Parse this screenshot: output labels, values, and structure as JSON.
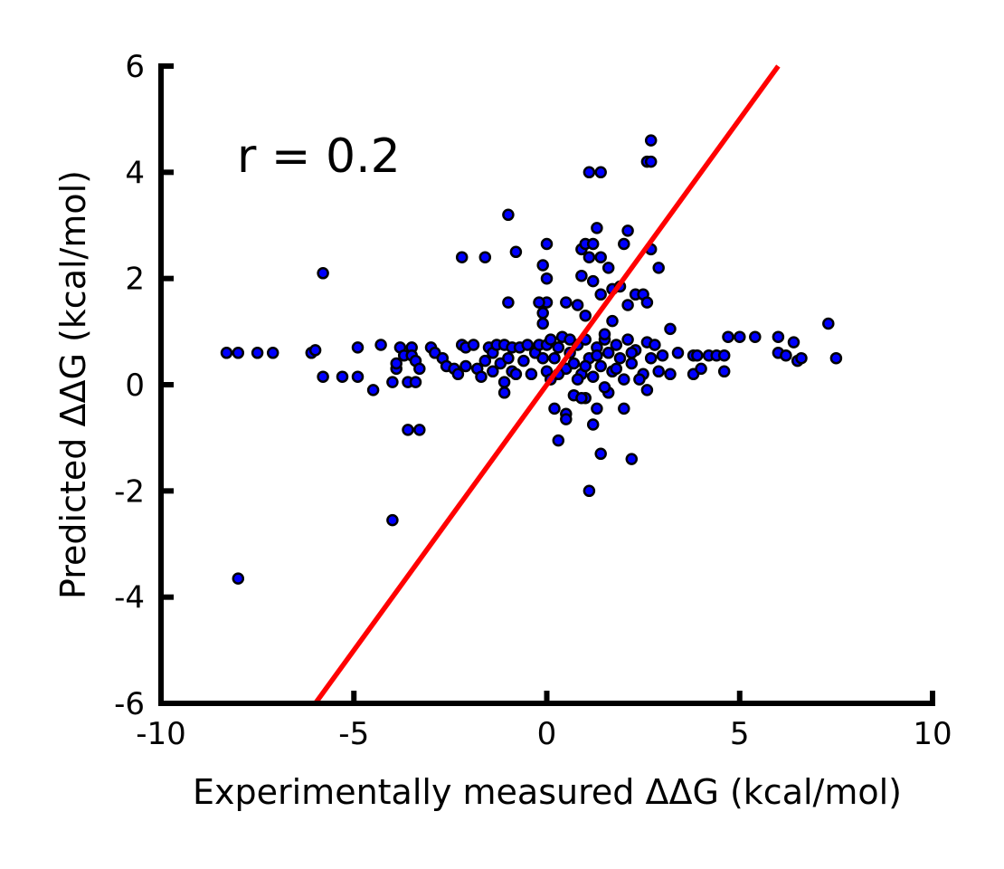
{
  "chart_data": {
    "type": "scatter",
    "xlabel": "Experimentally measured ΔΔG (kcal/mol)",
    "ylabel": "Predicted ΔΔG (kcal/mol)",
    "xlim": [
      -10,
      10
    ],
    "ylim": [
      -6,
      6
    ],
    "xticks": [
      -10,
      -5,
      0,
      5,
      10
    ],
    "yticks": [
      -6,
      -4,
      -2,
      0,
      2,
      4,
      6
    ],
    "xtick_labels": [
      "-10",
      "-5",
      "0",
      "5",
      "10"
    ],
    "ytick_labels": [
      "-6",
      "-4",
      "-2",
      "0",
      "2",
      "4",
      "6"
    ],
    "annotation": "r = 0.2",
    "grid": false,
    "point_color": "#0000ff",
    "point_edge_color": "#000000",
    "line_color": "#ff0000",
    "line": {
      "x": [
        -6,
        6
      ],
      "y": [
        -6,
        6
      ]
    },
    "points": [
      [
        -8.3,
        0.6
      ],
      [
        -8.0,
        0.6
      ],
      [
        -7.5,
        0.6
      ],
      [
        -7.1,
        0.6
      ],
      [
        -6.1,
        0.6
      ],
      [
        -6.0,
        0.65
      ],
      [
        -5.8,
        2.1
      ],
      [
        -5.8,
        0.15
      ],
      [
        -5.3,
        0.15
      ],
      [
        -4.9,
        0.15
      ],
      [
        -4.9,
        0.7
      ],
      [
        -4.5,
        -0.1
      ],
      [
        -4.3,
        0.75
      ],
      [
        -4.0,
        0.05
      ],
      [
        -3.9,
        0.3
      ],
      [
        -3.9,
        0.4
      ],
      [
        -3.8,
        0.7
      ],
      [
        -3.7,
        0.55
      ],
      [
        -3.6,
        0.05
      ],
      [
        -3.5,
        0.7
      ],
      [
        -3.4,
        0.05
      ],
      [
        -3.5,
        0.55
      ],
      [
        -3.4,
        0.45
      ],
      [
        -3.3,
        0.3
      ],
      [
        -3.6,
        -0.85
      ],
      [
        -3.3,
        -0.85
      ],
      [
        -3.0,
        0.7
      ],
      [
        -2.9,
        0.6
      ],
      [
        -2.7,
        0.5
      ],
      [
        -2.6,
        0.35
      ],
      [
        -2.4,
        0.3
      ],
      [
        -2.2,
        0.75
      ],
      [
        -2.1,
        0.7
      ],
      [
        -2.3,
        0.2
      ],
      [
        -2.1,
        0.35
      ],
      [
        -1.9,
        0.75
      ],
      [
        -1.8,
        0.3
      ],
      [
        -1.7,
        0.15
      ],
      [
        -1.6,
        0.45
      ],
      [
        -1.5,
        0.7
      ],
      [
        -1.4,
        0.25
      ],
      [
        -1.4,
        0.6
      ],
      [
        -1.3,
        0.75
      ],
      [
        -1.2,
        0.4
      ],
      [
        -1.1,
        0.75
      ],
      [
        -1.0,
        0.5
      ],
      [
        -0.9,
        0.25
      ],
      [
        -0.9,
        0.7
      ],
      [
        -0.8,
        0.2
      ],
      [
        -0.7,
        0.7
      ],
      [
        -0.6,
        0.45
      ],
      [
        -0.5,
        0.75
      ],
      [
        -0.4,
        0.2
      ],
      [
        -0.3,
        0.6
      ],
      [
        -0.2,
        0.75
      ],
      [
        -0.1,
        0.5
      ],
      [
        0.0,
        0.25
      ],
      [
        0.0,
        0.75
      ],
      [
        -1.1,
        -0.15
      ],
      [
        -1.1,
        0.05
      ],
      [
        -2.2,
        2.4
      ],
      [
        -1.6,
        2.4
      ],
      [
        -1.0,
        3.2
      ],
      [
        -0.8,
        2.5
      ],
      [
        -1.0,
        1.55
      ],
      [
        -4.0,
        -2.55
      ],
      [
        -8.0,
        -3.65
      ],
      [
        0.1,
        0.85
      ],
      [
        0.2,
        0.5
      ],
      [
        0.3,
        0.7
      ],
      [
        0.4,
        0.9
      ],
      [
        0.5,
        0.3
      ],
      [
        0.6,
        0.6
      ],
      [
        0.7,
        0.4
      ],
      [
        0.8,
        0.75
      ],
      [
        0.9,
        0.2
      ],
      [
        1.0,
        0.85
      ],
      [
        1.1,
        0.5
      ],
      [
        1.2,
        0.15
      ],
      [
        1.3,
        0.7
      ],
      [
        1.4,
        0.35
      ],
      [
        1.5,
        0.85
      ],
      [
        1.6,
        0.6
      ],
      [
        1.7,
        0.25
      ],
      [
        1.8,
        0.75
      ],
      [
        1.9,
        0.5
      ],
      [
        2.0,
        0.1
      ],
      [
        2.1,
        0.85
      ],
      [
        2.2,
        0.4
      ],
      [
        2.3,
        0.65
      ],
      [
        2.5,
        0.2
      ],
      [
        2.6,
        0.8
      ],
      [
        2.7,
        0.5
      ],
      [
        2.8,
        0.75
      ],
      [
        2.9,
        0.25
      ],
      [
        3.0,
        0.55
      ],
      [
        3.2,
        0.2
      ],
      [
        3.2,
        1.05
      ],
      [
        3.4,
        0.6
      ],
      [
        3.8,
        0.55
      ],
      [
        3.8,
        0.2
      ],
      [
        3.9,
        0.55
      ],
      [
        4.0,
        0.3
      ],
      [
        4.2,
        0.55
      ],
      [
        4.4,
        0.55
      ],
      [
        4.6,
        0.55
      ],
      [
        4.6,
        0.25
      ],
      [
        4.7,
        0.9
      ],
      [
        5.0,
        0.9
      ],
      [
        5.4,
        0.9
      ],
      [
        6.0,
        0.6
      ],
      [
        6.2,
        0.55
      ],
      [
        6.0,
        0.9
      ],
      [
        6.4,
        0.8
      ],
      [
        6.5,
        0.45
      ],
      [
        6.6,
        0.5
      ],
      [
        7.3,
        1.15
      ],
      [
        7.5,
        0.5
      ],
      [
        0.0,
        2.65
      ],
      [
        -0.1,
        2.25
      ],
      [
        0.0,
        2.0
      ],
      [
        0.0,
        1.55
      ],
      [
        -0.2,
        1.55
      ],
      [
        -0.1,
        1.35
      ],
      [
        -0.1,
        1.15
      ],
      [
        0.5,
        1.55
      ],
      [
        0.8,
        1.5
      ],
      [
        0.9,
        2.05
      ],
      [
        0.9,
        2.55
      ],
      [
        1.0,
        2.65
      ],
      [
        1.1,
        2.4
      ],
      [
        1.2,
        2.65
      ],
      [
        1.3,
        2.95
      ],
      [
        1.4,
        2.4
      ],
      [
        1.1,
        4.0
      ],
      [
        1.4,
        4.0
      ],
      [
        1.2,
        1.95
      ],
      [
        1.4,
        1.7
      ],
      [
        1.6,
        2.2
      ],
      [
        1.7,
        1.8
      ],
      [
        1.9,
        1.85
      ],
      [
        2.0,
        2.65
      ],
      [
        2.1,
        2.9
      ],
      [
        2.1,
        1.5
      ],
      [
        2.3,
        1.7
      ],
      [
        2.5,
        1.7
      ],
      [
        2.6,
        1.55
      ],
      [
        2.7,
        2.55
      ],
      [
        2.9,
        2.2
      ],
      [
        2.6,
        4.2
      ],
      [
        2.7,
        4.2
      ],
      [
        2.7,
        4.6
      ],
      [
        1.0,
        -0.25
      ],
      [
        1.2,
        -0.75
      ],
      [
        1.3,
        -0.45
      ],
      [
        1.4,
        -1.3
      ],
      [
        1.1,
        -2.0
      ],
      [
        0.3,
        -1.05
      ],
      [
        0.5,
        -0.55
      ],
      [
        0.5,
        -0.65
      ],
      [
        0.2,
        -0.45
      ],
      [
        2.0,
        -0.45
      ],
      [
        2.2,
        -1.4
      ],
      [
        1.6,
        -0.15
      ],
      [
        2.6,
        -0.1
      ],
      [
        0.7,
        -0.2
      ],
      [
        0.9,
        -0.25
      ],
      [
        1.5,
        -0.05
      ],
      [
        1.7,
        1.2
      ],
      [
        1.5,
        0.95
      ],
      [
        1.0,
        1.3
      ],
      [
        0.6,
        0.85
      ],
      [
        0.3,
        0.2
      ],
      [
        0.1,
        0.1
      ],
      [
        0.8,
        0.1
      ],
      [
        1.8,
        0.3
      ],
      [
        2.4,
        0.1
      ],
      [
        2.2,
        0.6
      ],
      [
        1.3,
        0.55
      ],
      [
        1.0,
        0.35
      ]
    ]
  }
}
